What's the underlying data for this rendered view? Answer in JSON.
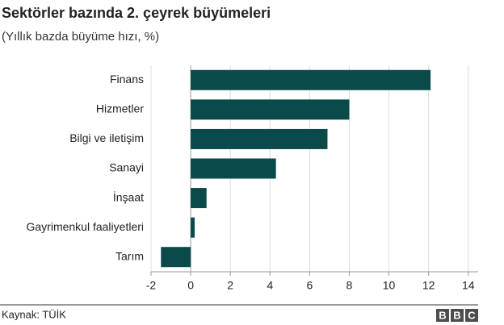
{
  "chart_data": {
    "type": "bar",
    "orientation": "horizontal",
    "title": "Sektörler bazında 2. çeyrek büyümeleri",
    "subtitle": "(Yıllık bazda büyüme hızı, %)",
    "categories": [
      "Finans",
      "Hizmetler",
      "Bilgi ve iletişim",
      "Sanayi",
      "İnşaat",
      "Gayrimenkul faaliyetleri",
      "Tarım"
    ],
    "values": [
      12.1,
      8.0,
      6.9,
      4.3,
      0.8,
      0.2,
      -1.5
    ],
    "color": "#0b4a4a",
    "xlim": [
      -2,
      14.5
    ],
    "xticks": [
      -2,
      0,
      2,
      4,
      6,
      8,
      10,
      12,
      14
    ],
    "grid": true
  },
  "footer": {
    "source": "Kaynak: TÜİK",
    "logo": "BBC"
  }
}
